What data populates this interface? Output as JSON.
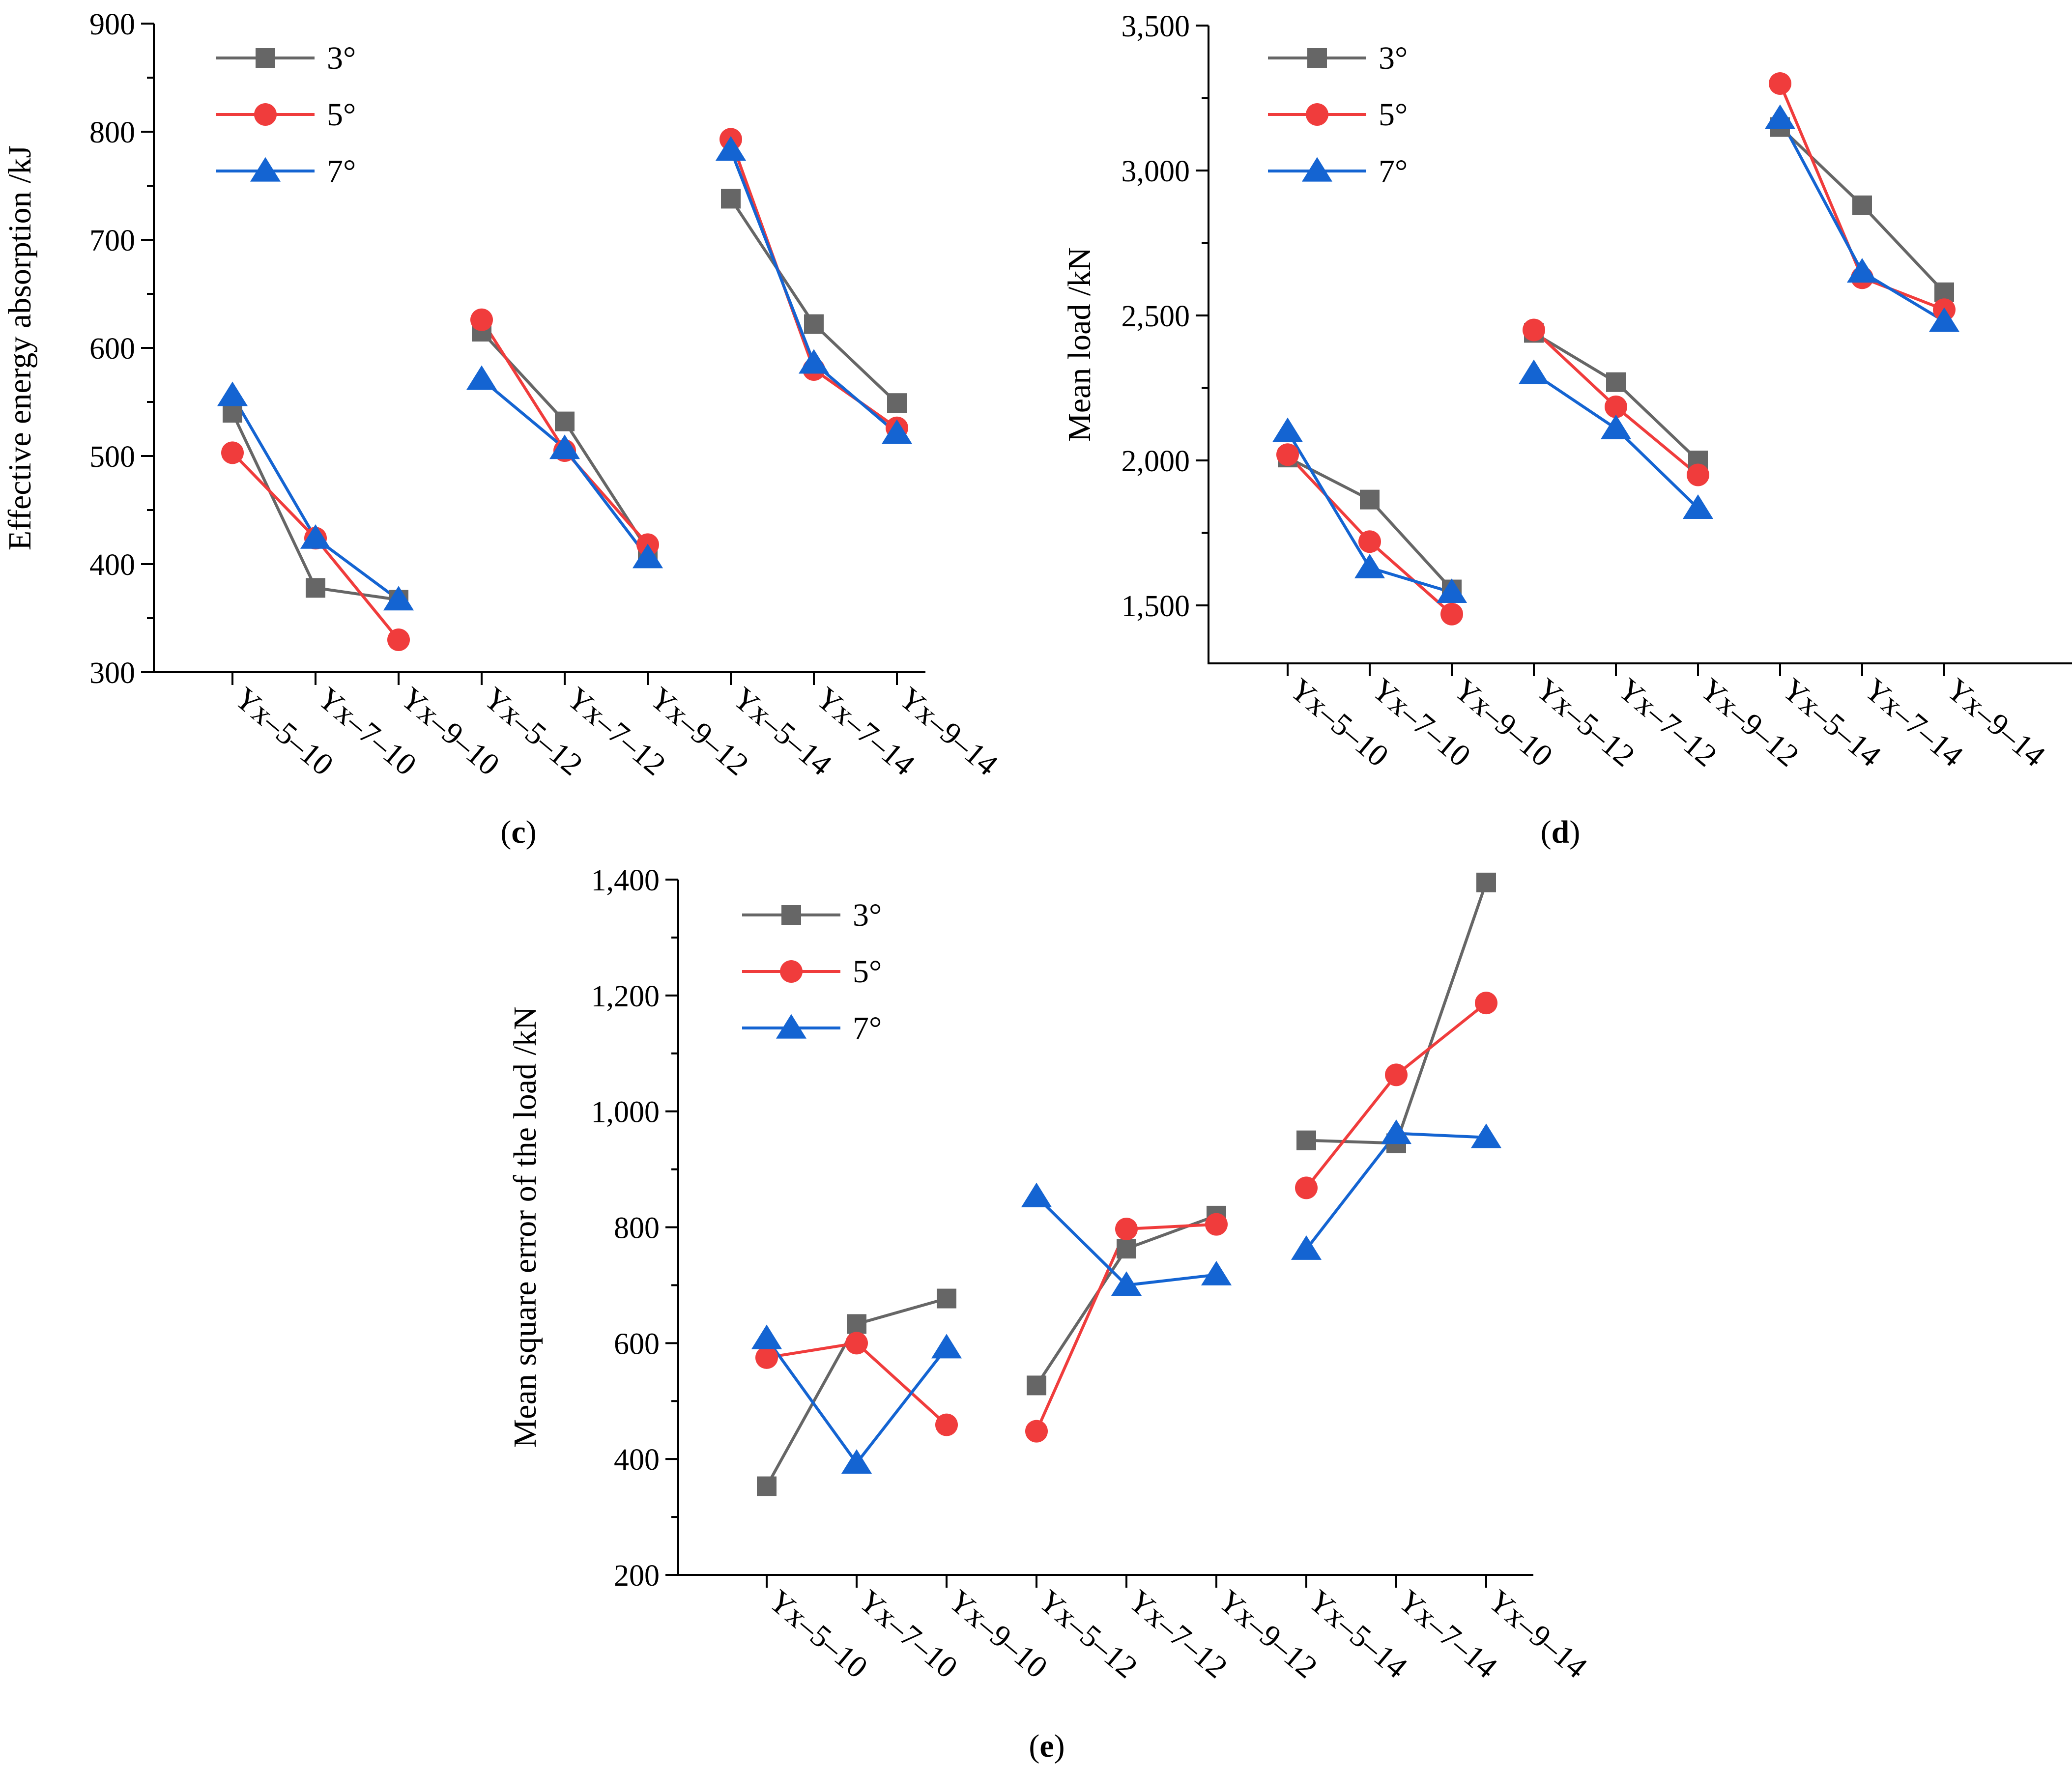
{
  "colors": {
    "3deg": "#666666",
    "5deg": "#f03c3c",
    "7deg": "#1464d2",
    "axis": "#000000"
  },
  "legend": [
    "3°",
    "5°",
    "7°"
  ],
  "chart_data": [
    {
      "id": "c",
      "type": "line",
      "label_open": "(",
      "label_letter": "c",
      "label_close": ")",
      "ylabel": "Effective energy absorption /kJ",
      "ylim": [
        300,
        900
      ],
      "yticks": [
        300,
        400,
        500,
        600,
        700,
        800,
        900
      ],
      "ytick_labels": [
        "300",
        "400",
        "500",
        "600",
        "700",
        "800",
        "900"
      ],
      "categories": [
        "Yx–5–10",
        "Yx–7–10",
        "Yx–9–10",
        "Yx–5–12",
        "Yx–7–12",
        "Yx–9–12",
        "Yx–5–14",
        "Yx–7–14",
        "Yx–9–14"
      ],
      "groups": [
        [
          0,
          3
        ],
        [
          3,
          6
        ],
        [
          6,
          9
        ]
      ],
      "legend_pos": "top-left",
      "series": [
        {
          "name": "3°",
          "marker": "square",
          "values": [
            540,
            378,
            367,
            615,
            532,
            413,
            738,
            622,
            549
          ]
        },
        {
          "name": "5°",
          "marker": "circle",
          "values": [
            503,
            424,
            330,
            626,
            505,
            418,
            793,
            580,
            526
          ]
        },
        {
          "name": "7°",
          "marker": "triangle",
          "values": [
            556,
            424,
            367,
            571,
            507,
            406,
            783,
            586,
            521
          ]
        }
      ]
    },
    {
      "id": "d",
      "type": "line",
      "label_open": "(",
      "label_letter": "d",
      "label_close": ")",
      "ylabel": "Mean load /kN",
      "ylim": [
        1300,
        3500
      ],
      "yticks": [
        1500,
        2000,
        2500,
        3000,
        3500
      ],
      "ytick_labels": [
        "1,500",
        "2,000",
        "2,500",
        "3,000",
        "3,500"
      ],
      "categories": [
        "Yx–5–10",
        "Yx–7–10",
        "Yx–9–10",
        "Yx–5–12",
        "Yx–7–12",
        "Yx–9–12",
        "Yx–5–14",
        "Yx–7–14",
        "Yx–9–14"
      ],
      "groups": [
        [
          0,
          3
        ],
        [
          3,
          6
        ],
        [
          6,
          9
        ]
      ],
      "legend_pos": "top-left",
      "series": [
        {
          "name": "3°",
          "marker": "square",
          "values": [
            2010,
            1865,
            1555,
            2440,
            2270,
            2000,
            3150,
            2880,
            2580
          ]
        },
        {
          "name": "5°",
          "marker": "circle",
          "values": [
            2020,
            1720,
            1470,
            2450,
            2185,
            1950,
            3300,
            2630,
            2520
          ]
        },
        {
          "name": "7°",
          "marker": "triangle",
          "values": [
            2100,
            1630,
            1545,
            2300,
            2110,
            1835,
            3180,
            2650,
            2480
          ]
        }
      ]
    },
    {
      "id": "e",
      "type": "line",
      "label_open": "(",
      "label_letter": "e",
      "label_close": ")",
      "ylabel": "Mean square error of the load /kN",
      "ylim": [
        200,
        1400
      ],
      "yticks": [
        200,
        400,
        600,
        800,
        1000,
        1200,
        1400
      ],
      "ytick_labels": [
        "200",
        "400",
        "600",
        "800",
        "1,000",
        "1,200",
        "1,400"
      ],
      "categories": [
        "Yx–5–10",
        "Yx–7–10",
        "Yx–9–10",
        "Yx–5–12",
        "Yx–7–12",
        "Yx–9–12",
        "Yx–5–14",
        "Yx–7–14",
        "Yx–9–14"
      ],
      "groups": [
        [
          0,
          3
        ],
        [
          3,
          6
        ],
        [
          6,
          9
        ]
      ],
      "legend_pos": "top-left",
      "series": [
        {
          "name": "3°",
          "marker": "square",
          "values": [
            353,
            633,
            677,
            527,
            763,
            820,
            950,
            945,
            1395
          ]
        },
        {
          "name": "5°",
          "marker": "circle",
          "values": [
            575,
            600,
            459,
            448,
            797,
            805,
            868,
            1063,
            1187
          ]
        },
        {
          "name": "7°",
          "marker": "triangle",
          "values": [
            608,
            393,
            592,
            853,
            700,
            718,
            762,
            962,
            955
          ]
        }
      ]
    }
  ]
}
